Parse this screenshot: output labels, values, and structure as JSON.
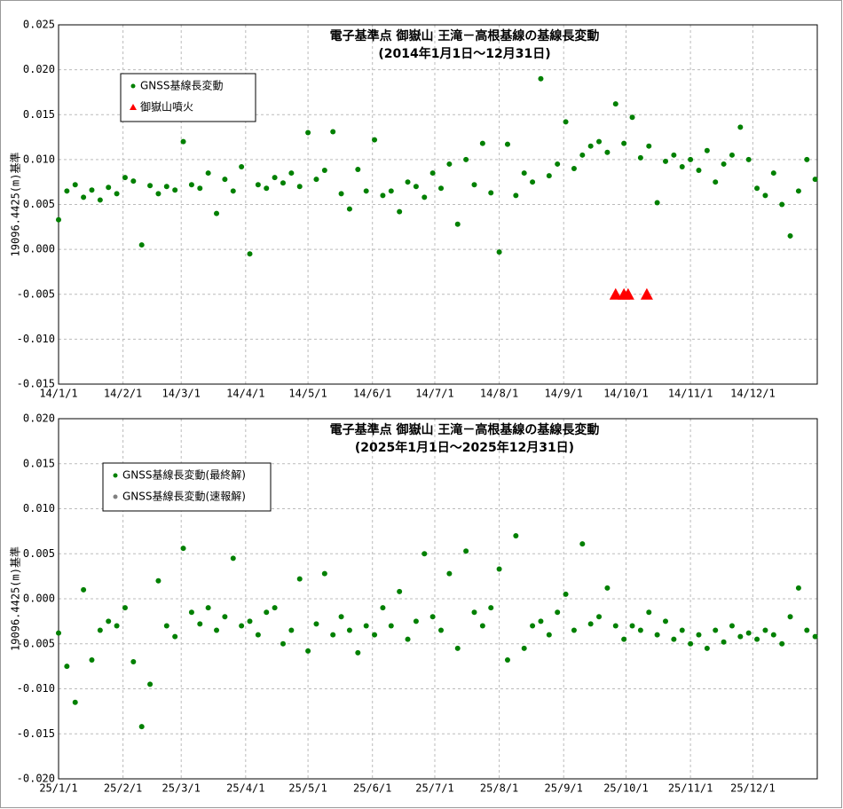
{
  "chart_data": [
    {
      "type": "scatter",
      "title": "電子基準点 御嶽山 王滝－高根基線の基線長変動",
      "subtitle": "(2014年1月1日～12月31日)",
      "y_label": "19096.4425(m)基準",
      "xlim": [
        "14/1/1",
        "15/1/1"
      ],
      "xticks": [
        "14/1/1",
        "14/2/1",
        "14/3/1",
        "14/4/1",
        "14/5/1",
        "14/6/1",
        "14/7/1",
        "14/8/1",
        "14/9/1",
        "14/10/1",
        "14/11/1",
        "14/12/1"
      ],
      "ylim": [
        -0.015,
        0.025
      ],
      "yticks": [
        -0.015,
        {
          "value": -0.01,
          "label": "-0.010"
        },
        -0.005,
        {
          "value": 0,
          "label": "0.000"
        },
        0.005,
        {
          "value": 0.01,
          "label": "0.010"
        },
        0.015,
        {
          "value": 0.02,
          "label": "0.020"
        },
        0.025
      ],
      "grid": true,
      "series": [
        {
          "name": "GNSS基線長変動",
          "color": "#008000",
          "marker": "circle",
          "x": [
            "14/1/1",
            "14/1/5",
            "14/1/9",
            "14/1/13",
            "14/1/17",
            "14/1/21",
            "14/1/25",
            "14/1/29",
            "14/2/2",
            "14/2/6",
            "14/2/10",
            "14/2/14",
            "14/2/18",
            "14/2/22",
            "14/2/26",
            "14/3/2",
            "14/3/6",
            "14/3/10",
            "14/3/14",
            "14/3/18",
            "14/3/22",
            "14/3/26",
            "14/3/30",
            "14/4/3",
            "14/4/7",
            "14/4/11",
            "14/4/15",
            "14/4/19",
            "14/4/23",
            "14/4/27",
            "14/5/1",
            "14/5/5",
            "14/5/9",
            "14/5/13",
            "14/5/17",
            "14/5/21",
            "14/5/25",
            "14/5/29",
            "14/6/2",
            "14/6/6",
            "14/6/10",
            "14/6/14",
            "14/6/18",
            "14/6/22",
            "14/6/26",
            "14/6/30",
            "14/7/4",
            "14/7/8",
            "14/7/12",
            "14/7/16",
            "14/7/20",
            "14/7/24",
            "14/7/28",
            "14/8/1",
            "14/8/5",
            "14/8/9",
            "14/8/13",
            "14/8/17",
            "14/8/21",
            "14/8/25",
            "14/8/29",
            "14/9/2",
            "14/9/6",
            "14/9/10",
            "14/9/14",
            "14/9/18",
            "14/9/22",
            "14/9/26",
            "14/9/30",
            "14/10/4",
            "14/10/8",
            "14/10/12",
            "14/10/16",
            "14/10/20",
            "14/10/24",
            "14/10/28",
            "14/11/1",
            "14/11/5",
            "14/11/9",
            "14/11/13",
            "14/11/17",
            "14/11/21",
            "14/11/25",
            "14/11/29",
            "14/12/3",
            "14/12/7",
            "14/12/11",
            "14/12/15",
            "14/12/19",
            "14/12/23",
            "14/12/27",
            "14/12/31"
          ],
          "values": [
            0.0033,
            0.0065,
            0.0072,
            0.0058,
            0.0066,
            0.0055,
            0.0069,
            0.0062,
            0.008,
            0.0076,
            0.0005,
            0.0071,
            0.0062,
            0.007,
            0.0066,
            0.012,
            0.0072,
            0.0068,
            0.0085,
            0.004,
            0.0078,
            0.0065,
            0.0092,
            -0.0005,
            0.0072,
            0.0068,
            0.008,
            0.0074,
            0.0085,
            0.007,
            0.013,
            0.0078,
            0.0088,
            0.0131,
            0.0062,
            0.0045,
            0.0089,
            0.0065,
            0.0122,
            0.006,
            0.0065,
            0.0042,
            0.0075,
            0.007,
            0.0058,
            0.0085,
            0.0068,
            0.0095,
            0.0028,
            0.01,
            0.0072,
            0.0118,
            0.0063,
            -0.0003,
            0.0117,
            0.006,
            0.0085,
            0.0075,
            0.019,
            0.0082,
            0.0095,
            0.0142,
            0.009,
            0.0105,
            0.0115,
            0.012,
            0.0108,
            0.0162,
            0.0118,
            0.0147,
            0.0102,
            0.0115,
            0.0052,
            0.0098,
            0.0105,
            0.0092,
            0.01,
            0.0088,
            0.011,
            0.0075,
            0.0095,
            0.0105,
            0.0136,
            0.01,
            0.0068,
            0.006,
            0.0085,
            0.005,
            0.0015,
            0.0065,
            0.01,
            0.0078
          ]
        },
        {
          "name": "御嶽山噴火",
          "color": "#ff0000",
          "marker": "triangle",
          "x": [
            "14/9/26",
            "14/9/30",
            "14/10/2",
            "14/10/11"
          ],
          "values": [
            -0.005,
            -0.005,
            -0.005,
            -0.005
          ]
        }
      ]
    },
    {
      "type": "scatter",
      "title": "電子基準点 御嶽山 王滝－高根基線の基線長変動",
      "subtitle": "(2025年1月1日～2025年12月31日)",
      "y_label": "19096.4425(m)基準",
      "xlim": [
        "25/1/1",
        "26/1/1"
      ],
      "xticks": [
        "25/1/1",
        "25/2/1",
        "25/3/1",
        "25/4/1",
        "25/5/1",
        "25/6/1",
        "25/7/1",
        "25/8/1",
        "25/9/1",
        "25/10/1",
        "25/11/1",
        "25/12/1"
      ],
      "ylim": [
        -0.02,
        0.02
      ],
      "yticks": [
        {
          "value": -0.02,
          "label": "-0.020"
        },
        -0.015,
        {
          "value": -0.01,
          "label": "-0.010"
        },
        -0.005,
        {
          "value": 0,
          "label": "0.000"
        },
        0.005,
        {
          "value": 0.01,
          "label": "0.010"
        },
        0.015,
        {
          "value": 0.02,
          "label": "0.020"
        }
      ],
      "grid": true,
      "series": [
        {
          "name": "GNSS基線長変動(最終解)",
          "color": "#008000",
          "marker": "circle",
          "x": [
            "25/1/1",
            "25/1/5",
            "25/1/9",
            "25/1/13",
            "25/1/17",
            "25/1/21",
            "25/1/25",
            "25/1/29",
            "25/2/2",
            "25/2/6",
            "25/2/10",
            "25/2/14",
            "25/2/18",
            "25/2/22",
            "25/2/26",
            "25/3/2",
            "25/3/6",
            "25/3/10",
            "25/3/14",
            "25/3/18",
            "25/3/22",
            "25/3/26",
            "25/3/30",
            "25/4/3",
            "25/4/7",
            "25/4/11",
            "25/4/15",
            "25/4/19",
            "25/4/23",
            "25/4/27",
            "25/5/1",
            "25/5/5",
            "25/5/9",
            "25/5/13",
            "25/5/17",
            "25/5/21",
            "25/5/25",
            "25/5/29",
            "25/6/2",
            "25/6/6",
            "25/6/10",
            "25/6/14",
            "25/6/18",
            "25/6/22",
            "25/6/26",
            "25/6/30",
            "25/7/4",
            "25/7/8",
            "25/7/12",
            "25/7/16",
            "25/7/20",
            "25/7/24",
            "25/7/28",
            "25/8/1",
            "25/8/5",
            "25/8/9",
            "25/8/13",
            "25/8/17",
            "25/8/21",
            "25/8/25",
            "25/8/29",
            "25/9/2",
            "25/9/6",
            "25/9/10",
            "25/9/14",
            "25/9/18",
            "25/9/22",
            "25/9/26",
            "25/9/30",
            "25/10/4",
            "25/10/8",
            "25/10/12",
            "25/10/16",
            "25/10/20",
            "25/10/24",
            "25/10/28",
            "25/11/1",
            "25/11/5",
            "25/11/9",
            "25/11/13",
            "25/11/17",
            "25/11/21",
            "25/11/25",
            "25/11/29",
            "25/12/3",
            "25/12/7",
            "25/12/11",
            "25/12/15",
            "25/12/19",
            "25/12/23",
            "25/12/27",
            "25/12/31"
          ],
          "values": [
            -0.0038,
            -0.0075,
            -0.0115,
            0.001,
            -0.0068,
            -0.0035,
            -0.0025,
            -0.003,
            -0.001,
            -0.007,
            -0.0142,
            -0.0095,
            0.002,
            -0.003,
            -0.0042,
            0.0056,
            -0.0015,
            -0.0028,
            -0.001,
            -0.0035,
            -0.002,
            0.0045,
            -0.003,
            -0.0025,
            -0.004,
            -0.0015,
            -0.001,
            -0.005,
            -0.0035,
            0.0022,
            -0.0058,
            -0.0028,
            0.0028,
            -0.004,
            -0.002,
            -0.0035,
            -0.006,
            -0.003,
            -0.004,
            -0.001,
            -0.003,
            0.0008,
            -0.0045,
            -0.0025,
            0.005,
            -0.002,
            -0.0035,
            0.0028,
            -0.0055,
            0.0053,
            -0.0015,
            -0.003,
            -0.001,
            0.0033,
            -0.0068,
            0.007,
            -0.0055,
            -0.003,
            -0.0025,
            -0.004,
            -0.0015,
            0.0005,
            -0.0035,
            0.0061,
            -0.0028,
            -0.002,
            0.0012,
            -0.003,
            -0.0045,
            -0.003,
            -0.0035,
            -0.0015,
            -0.004,
            -0.0025,
            -0.0045,
            -0.0035,
            -0.005,
            -0.004,
            -0.0055,
            -0.0035,
            -0.0048,
            -0.003,
            -0.0042,
            -0.0038,
            -0.0045,
            -0.0035,
            -0.004,
            -0.005,
            -0.002,
            0.0012,
            -0.0035,
            -0.0042
          ]
        },
        {
          "name": "GNSS基線長変動(速報解)",
          "color": "#808080",
          "marker": "circle",
          "x": [],
          "values": []
        }
      ]
    }
  ]
}
